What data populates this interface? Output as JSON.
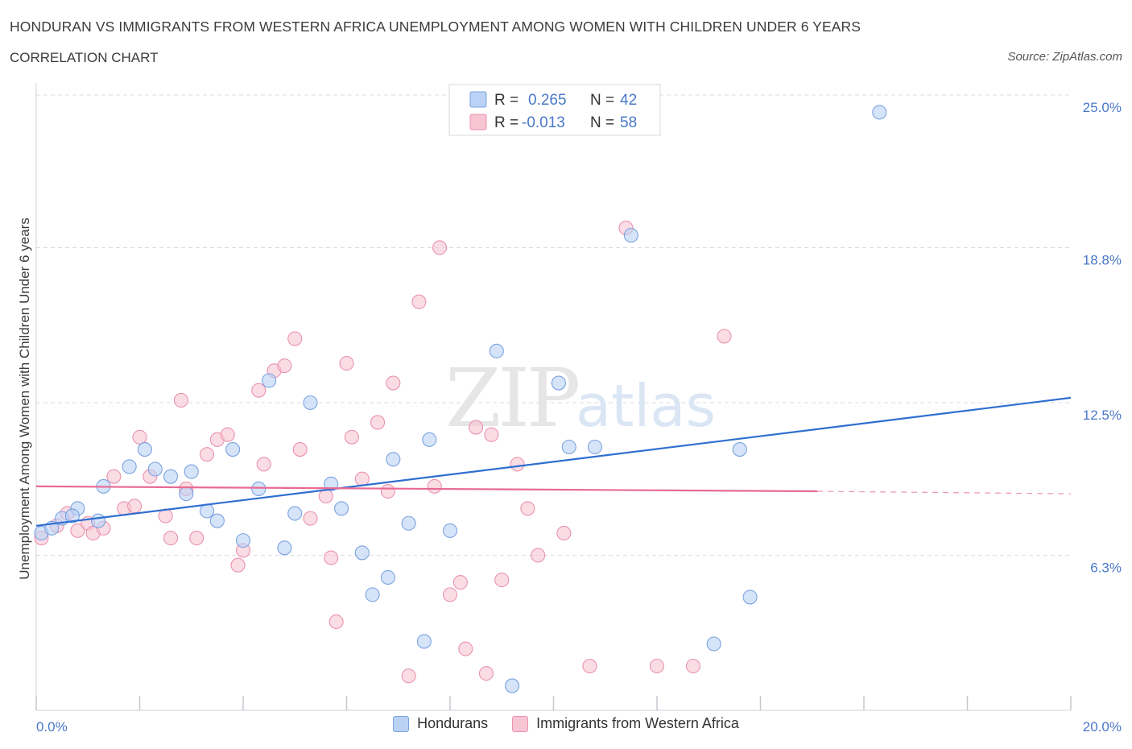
{
  "header": {
    "title": "HONDURAN VS IMMIGRANTS FROM WESTERN AFRICA UNEMPLOYMENT AMONG WOMEN WITH CHILDREN UNDER 6 YEARS",
    "subtitle": "CORRELATION CHART",
    "source": "Source: ZipAtlas.com"
  },
  "watermark": {
    "zip": "ZIP",
    "atlas": "atlas"
  },
  "legend_box": {
    "rows": [
      {
        "r_label": "R =",
        "r_value": "0.265",
        "n_label": "N =",
        "n_value": "42"
      },
      {
        "r_label": "R =",
        "r_value": "-0.013",
        "n_label": "N =",
        "n_value": "58"
      }
    ]
  },
  "colors": {
    "blue_fill": "#b9d2f5",
    "blue_stroke": "#7ba3e0",
    "blue_line": "#2f6fd0",
    "pink_fill": "#f7c5d4",
    "pink_stroke": "#ea93ad",
    "pink_line": "#e86a93",
    "axis_text": "#4a78c8",
    "grid": "#d9dde3"
  },
  "chart_data": {
    "type": "scatter",
    "title": "HONDURAN VS IMMIGRANTS FROM WESTERN AFRICA UNEMPLOYMENT AMONG WOMEN WITH CHILDREN UNDER 6 YEARS",
    "ylabel": "Unemployment Among Women with Children Under 6 years",
    "xlabel": "",
    "xlim": [
      0,
      20
    ],
    "ylim": [
      0,
      25.0
    ],
    "x_tick_labels": [
      "0.0%",
      "20.0%"
    ],
    "y_ticks": [
      6.3,
      12.5,
      18.8,
      25.0
    ],
    "y_tick_labels": [
      "6.3%",
      "12.5%",
      "18.8%",
      "25.0%"
    ],
    "grid": true,
    "legend_position": "bottom",
    "series": [
      {
        "name": "Hondurans",
        "r": 0.265,
        "n": 42,
        "trend": {
          "x": [
            0,
            20
          ],
          "y": [
            7.5,
            12.7
          ]
        },
        "points": [
          [
            0.1,
            7.2
          ],
          [
            0.3,
            7.4
          ],
          [
            0.5,
            7.8
          ],
          [
            0.8,
            8.2
          ],
          [
            1.2,
            7.7
          ],
          [
            1.3,
            9.1
          ],
          [
            1.8,
            9.9
          ],
          [
            2.1,
            10.6
          ],
          [
            2.3,
            9.8
          ],
          [
            2.6,
            9.5
          ],
          [
            2.9,
            8.8
          ],
          [
            3.0,
            9.7
          ],
          [
            3.3,
            8.1
          ],
          [
            3.5,
            7.7
          ],
          [
            3.8,
            10.6
          ],
          [
            4.0,
            6.9
          ],
          [
            4.3,
            9.0
          ],
          [
            4.5,
            13.4
          ],
          [
            4.8,
            6.6
          ],
          [
            5.0,
            8.0
          ],
          [
            5.3,
            12.5
          ],
          [
            5.7,
            9.2
          ],
          [
            5.9,
            8.2
          ],
          [
            6.3,
            6.4
          ],
          [
            6.5,
            4.7
          ],
          [
            6.8,
            5.4
          ],
          [
            6.9,
            10.2
          ],
          [
            7.2,
            7.6
          ],
          [
            7.5,
            2.8
          ],
          [
            7.6,
            11.0
          ],
          [
            8.0,
            7.3
          ],
          [
            8.9,
            14.6
          ],
          [
            9.2,
            1.0
          ],
          [
            10.1,
            13.3
          ],
          [
            10.3,
            10.7
          ],
          [
            10.8,
            10.7
          ],
          [
            11.5,
            19.3
          ],
          [
            13.1,
            2.7
          ],
          [
            13.6,
            10.6
          ],
          [
            13.8,
            4.6
          ],
          [
            16.3,
            24.3
          ],
          [
            0.7,
            7.9
          ]
        ]
      },
      {
        "name": "Immigrants from Western Africa",
        "r": -0.013,
        "n": 58,
        "trend": {
          "x": [
            0,
            15.1
          ],
          "y": [
            9.1,
            8.9
          ],
          "dashed_to": [
            20,
            8.8
          ]
        },
        "points": [
          [
            0.1,
            7.0
          ],
          [
            0.4,
            7.5
          ],
          [
            0.6,
            8.0
          ],
          [
            0.8,
            7.3
          ],
          [
            1.0,
            7.6
          ],
          [
            1.1,
            7.2
          ],
          [
            1.3,
            7.4
          ],
          [
            1.5,
            9.5
          ],
          [
            1.7,
            8.2
          ],
          [
            1.9,
            8.3
          ],
          [
            2.0,
            11.1
          ],
          [
            2.2,
            9.5
          ],
          [
            2.5,
            7.9
          ],
          [
            2.6,
            7.0
          ],
          [
            2.8,
            12.6
          ],
          [
            2.9,
            9.0
          ],
          [
            3.1,
            7.0
          ],
          [
            3.3,
            10.4
          ],
          [
            3.5,
            11.0
          ],
          [
            3.7,
            11.2
          ],
          [
            3.9,
            5.9
          ],
          [
            4.0,
            6.5
          ],
          [
            4.3,
            13.0
          ],
          [
            4.4,
            10.0
          ],
          [
            4.6,
            13.8
          ],
          [
            4.8,
            14.0
          ],
          [
            5.0,
            15.1
          ],
          [
            5.1,
            10.6
          ],
          [
            5.3,
            7.8
          ],
          [
            5.6,
            8.7
          ],
          [
            5.7,
            6.2
          ],
          [
            5.8,
            3.6
          ],
          [
            6.0,
            14.1
          ],
          [
            6.1,
            11.1
          ],
          [
            6.3,
            9.4
          ],
          [
            6.6,
            11.7
          ],
          [
            6.8,
            8.9
          ],
          [
            6.9,
            13.3
          ],
          [
            7.2,
            1.4
          ],
          [
            7.4,
            16.6
          ],
          [
            7.7,
            9.1
          ],
          [
            7.8,
            18.8
          ],
          [
            8.0,
            4.7
          ],
          [
            8.2,
            5.2
          ],
          [
            8.3,
            2.5
          ],
          [
            8.5,
            11.5
          ],
          [
            8.8,
            11.2
          ],
          [
            9.0,
            5.3
          ],
          [
            9.3,
            10.0
          ],
          [
            9.5,
            8.2
          ],
          [
            9.7,
            6.3
          ],
          [
            10.2,
            7.2
          ],
          [
            10.7,
            1.8
          ],
          [
            11.4,
            19.6
          ],
          [
            12.0,
            1.8
          ],
          [
            12.7,
            1.8
          ],
          [
            13.3,
            15.2
          ],
          [
            8.7,
            1.5
          ]
        ]
      }
    ]
  },
  "bottom_legend": [
    {
      "label": "Hondurans"
    },
    {
      "label": "Immigrants from Western Africa"
    }
  ]
}
